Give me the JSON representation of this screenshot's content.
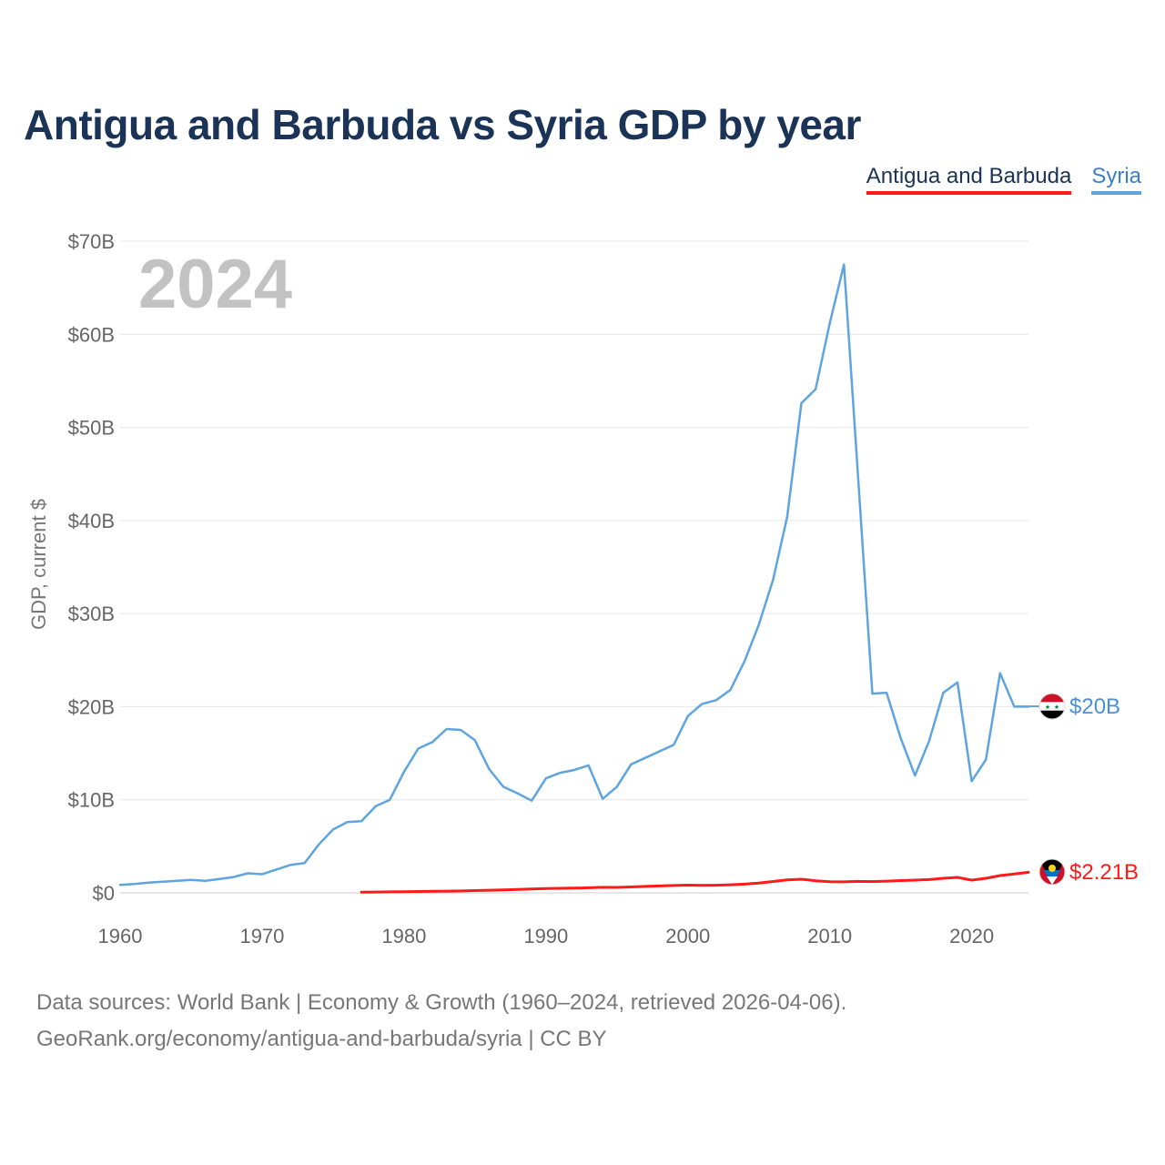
{
  "title": "Antigua and Barbuda vs Syria GDP by year",
  "legend": {
    "antigua": "Antigua and Barbuda",
    "syria": "Syria"
  },
  "footer": {
    "line1": "Data sources: World Bank | Economy & Growth (1960–2024, retrieved 2026-04-06).",
    "line2": "GeoRank.org/economy/antigua-and-barbuda/syria | CC BY"
  },
  "colors": {
    "antigua": "#ff1a1a",
    "syria": "#5ea4e0",
    "syria_label": "#4a90d9",
    "grid": "#e6e6e6",
    "title": "#1a3357"
  },
  "chart_data": {
    "type": "line",
    "title": "Antigua and Barbuda vs Syria GDP by year",
    "year_label": "2024",
    "xlabel": "",
    "ylabel": "GDP, current $",
    "xlim": [
      1960,
      2024
    ],
    "ylim": [
      0,
      70
    ],
    "x_ticks": [
      1960,
      1970,
      1980,
      1990,
      2000,
      2010,
      2020
    ],
    "y_ticks": [
      {
        "value": 0,
        "label": "$0"
      },
      {
        "value": 10,
        "label": "$10B"
      },
      {
        "value": 20,
        "label": "$20B"
      },
      {
        "value": 30,
        "label": "$30B"
      },
      {
        "value": 40,
        "label": "$40B"
      },
      {
        "value": 50,
        "label": "$50B"
      },
      {
        "value": 60,
        "label": "$60B"
      },
      {
        "value": 70,
        "label": "$70B"
      }
    ],
    "series": [
      {
        "name": "Syria",
        "color": "#5ea4e0",
        "end_label": "$20B",
        "x": [
          1960,
          1961,
          1962,
          1963,
          1964,
          1965,
          1966,
          1967,
          1968,
          1969,
          1970,
          1971,
          1972,
          1973,
          1974,
          1975,
          1976,
          1977,
          1978,
          1979,
          1980,
          1981,
          1982,
          1983,
          1984,
          1985,
          1986,
          1987,
          1988,
          1989,
          1990,
          1991,
          1992,
          1993,
          1994,
          1995,
          1996,
          1997,
          1998,
          1999,
          2000,
          2001,
          2002,
          2003,
          2004,
          2005,
          2006,
          2007,
          2008,
          2009,
          2010,
          2011,
          2012,
          2013,
          2014,
          2015,
          2016,
          2017,
          2018,
          2019,
          2020,
          2021,
          2022,
          2023,
          2024
        ],
        "values": [
          0.86,
          0.95,
          1.1,
          1.2,
          1.3,
          1.4,
          1.3,
          1.5,
          1.7,
          2.1,
          2.0,
          2.5,
          3.0,
          3.2,
          5.2,
          6.8,
          7.6,
          7.7,
          9.3,
          10.0,
          13.0,
          15.5,
          16.2,
          17.6,
          17.5,
          16.4,
          13.3,
          11.4,
          10.7,
          9.9,
          12.3,
          12.9,
          13.2,
          13.7,
          10.1,
          11.4,
          13.8,
          14.5,
          15.2,
          15.9,
          19.0,
          20.3,
          20.7,
          21.8,
          24.9,
          28.8,
          33.6,
          40.4,
          52.6,
          54.1,
          61.2,
          67.5,
          44.5,
          21.4,
          21.5,
          16.6,
          12.6,
          16.3,
          21.5,
          22.6,
          12.0,
          14.3,
          23.6,
          20.0,
          20.0
        ]
      },
      {
        "name": "Antigua and Barbuda",
        "color": "#ff1a1a",
        "end_label": "$2.21B",
        "x": [
          1977,
          1978,
          1979,
          1980,
          1981,
          1982,
          1983,
          1984,
          1985,
          1986,
          1987,
          1988,
          1989,
          1990,
          1991,
          1992,
          1993,
          1994,
          1995,
          1996,
          1997,
          1998,
          1999,
          2000,
          2001,
          2002,
          2003,
          2004,
          2005,
          2006,
          2007,
          2008,
          2009,
          2010,
          2011,
          2012,
          2013,
          2014,
          2015,
          2016,
          2017,
          2018,
          2019,
          2020,
          2021,
          2022,
          2023,
          2024
        ],
        "values": [
          0.08,
          0.09,
          0.11,
          0.13,
          0.15,
          0.17,
          0.19,
          0.21,
          0.24,
          0.28,
          0.32,
          0.37,
          0.42,
          0.46,
          0.49,
          0.51,
          0.55,
          0.6,
          0.59,
          0.64,
          0.69,
          0.74,
          0.79,
          0.83,
          0.8,
          0.82,
          0.87,
          0.94,
          1.06,
          1.22,
          1.4,
          1.47,
          1.3,
          1.2,
          1.18,
          1.23,
          1.21,
          1.26,
          1.32,
          1.37,
          1.43,
          1.56,
          1.66,
          1.37,
          1.56,
          1.86,
          2.03,
          2.21
        ]
      }
    ]
  }
}
